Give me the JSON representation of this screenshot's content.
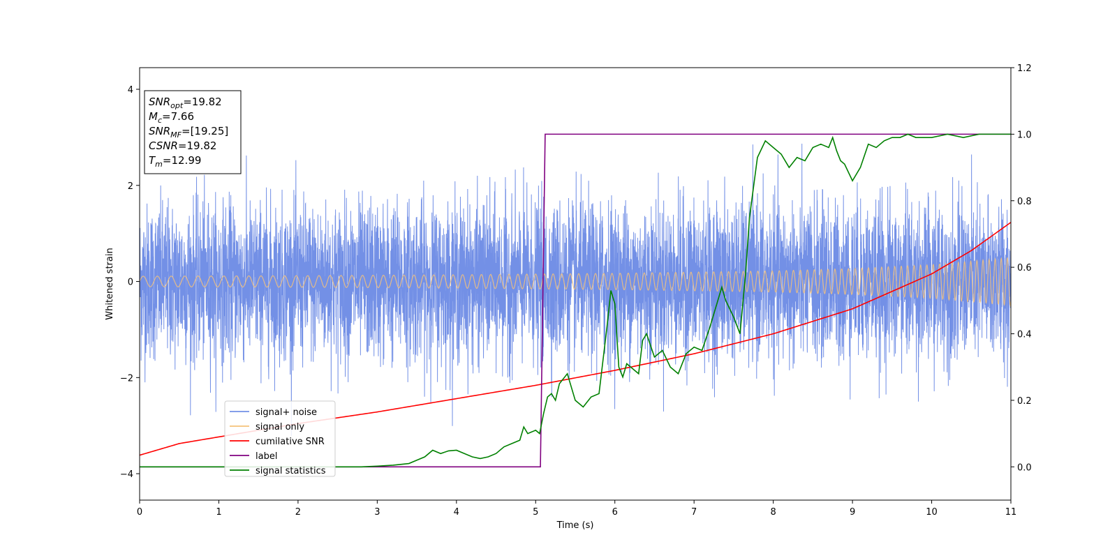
{
  "chart_data": {
    "type": "line",
    "xlabel": "Time (s)",
    "ylabel": "Whitened strain",
    "xlim": [
      0,
      11
    ],
    "ylim_left": [
      -4.55,
      4.45
    ],
    "ylim_right": [
      -0.1,
      1.2
    ],
    "xticks": [
      0,
      1,
      2,
      3,
      4,
      5,
      6,
      7,
      8,
      9,
      10,
      11
    ],
    "yticks_left": [
      -4,
      -2,
      0,
      2,
      4
    ],
    "yticks_right": [
      "0.0",
      "0.2",
      "0.4",
      "0.6",
      "0.8",
      "1.0",
      "1.2"
    ],
    "grid": false,
    "legend_position": "lower-left",
    "series": [
      {
        "name": "signal+ noise",
        "axis": "left",
        "color": "#7390e6",
        "kind": "noise",
        "sigma": 0.8
      },
      {
        "name": "signal only",
        "axis": "left",
        "color": "#f4c27a",
        "kind": "chirp",
        "x": [
          0,
          2,
          4,
          6,
          8,
          9,
          10,
          11
        ],
        "amplitude": [
          0.11,
          0.12,
          0.14,
          0.17,
          0.22,
          0.27,
          0.35,
          0.5
        ]
      },
      {
        "name": "cumilative SNR",
        "axis": "right",
        "color": "#ff0000",
        "kind": "line",
        "x": [
          0,
          0.5,
          1,
          2,
          3,
          4,
          5,
          6,
          7,
          8,
          9,
          10,
          10.5,
          11
        ],
        "y": [
          0.035,
          0.07,
          0.09,
          0.13,
          0.165,
          0.205,
          0.245,
          0.29,
          0.34,
          0.4,
          0.475,
          0.58,
          0.65,
          0.735
        ]
      },
      {
        "name": "label",
        "axis": "right",
        "color": "#800080",
        "kind": "line",
        "x": [
          0,
          5.06,
          5.12,
          11
        ],
        "y": [
          0.0,
          0.0,
          1.0,
          1.0
        ]
      },
      {
        "name": "signal statistics",
        "axis": "right",
        "color": "#008000",
        "kind": "line",
        "x": [
          0,
          0.5,
          1,
          2,
          2.8,
          3,
          3.2,
          3.4,
          3.5,
          3.6,
          3.7,
          3.8,
          3.9,
          4.0,
          4.1,
          4.2,
          4.3,
          4.4,
          4.5,
          4.6,
          4.7,
          4.8,
          4.85,
          4.9,
          5.0,
          5.05,
          5.1,
          5.15,
          5.2,
          5.25,
          5.3,
          5.4,
          5.5,
          5.6,
          5.7,
          5.8,
          5.85,
          5.9,
          5.95,
          6.0,
          6.05,
          6.1,
          6.15,
          6.2,
          6.3,
          6.35,
          6.4,
          6.5,
          6.6,
          6.7,
          6.8,
          6.9,
          7.0,
          7.1,
          7.2,
          7.3,
          7.35,
          7.4,
          7.5,
          7.58,
          7.65,
          7.7,
          7.8,
          7.9,
          8.0,
          8.1,
          8.2,
          8.3,
          8.4,
          8.5,
          8.6,
          8.7,
          8.75,
          8.8,
          8.85,
          8.9,
          9.0,
          9.1,
          9.2,
          9.3,
          9.4,
          9.5,
          9.6,
          9.7,
          9.8,
          9.9,
          10.0,
          10.2,
          10.4,
          10.6,
          10.8,
          11.0
        ],
        "y": [
          0.0,
          0.0,
          0.0,
          0.0,
          0.0,
          0.002,
          0.005,
          0.01,
          0.02,
          0.03,
          0.05,
          0.04,
          0.048,
          0.05,
          0.04,
          0.03,
          0.025,
          0.03,
          0.04,
          0.06,
          0.07,
          0.08,
          0.12,
          0.1,
          0.11,
          0.1,
          0.16,
          0.21,
          0.22,
          0.2,
          0.25,
          0.28,
          0.2,
          0.18,
          0.21,
          0.22,
          0.32,
          0.42,
          0.53,
          0.49,
          0.3,
          0.27,
          0.31,
          0.3,
          0.28,
          0.38,
          0.4,
          0.33,
          0.35,
          0.3,
          0.28,
          0.34,
          0.36,
          0.35,
          0.42,
          0.5,
          0.54,
          0.5,
          0.45,
          0.4,
          0.58,
          0.75,
          0.93,
          0.98,
          0.96,
          0.94,
          0.9,
          0.93,
          0.92,
          0.96,
          0.97,
          0.96,
          0.99,
          0.95,
          0.92,
          0.91,
          0.86,
          0.9,
          0.97,
          0.96,
          0.98,
          0.99,
          0.99,
          1.0,
          0.99,
          0.99,
          0.99,
          1.0,
          0.99,
          1.0,
          1.0,
          1.0
        ]
      }
    ],
    "info_box": [
      {
        "base": "SNR",
        "sub": "opt",
        "rest": "=19.82"
      },
      {
        "base": "M",
        "sub": "c",
        "rest": "=7.66"
      },
      {
        "base": "SNR",
        "sub": "MF",
        "rest": "=[19.25]"
      },
      {
        "base": "CSNR",
        "sub": "",
        "rest": "=19.82"
      },
      {
        "base": "T",
        "sub": "m",
        "rest": "=12.99"
      }
    ]
  }
}
